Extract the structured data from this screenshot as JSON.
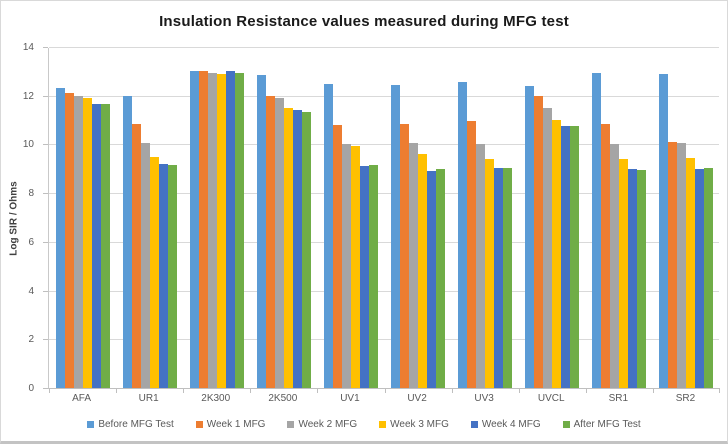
{
  "chart_data": {
    "type": "bar",
    "title": "Insulation Resistance values measured during MFG test",
    "xlabel": "",
    "ylabel": "Log SIR / Ohms",
    "ylim": [
      0,
      14
    ],
    "yticks": [
      0,
      2,
      4,
      6,
      8,
      10,
      12,
      14
    ],
    "grid": true,
    "legend_position": "bottom",
    "categories": [
      "AFA",
      "UR1",
      "2K300",
      "2K500",
      "UV1",
      "UV2",
      "UV3",
      "UVCL",
      "SR1",
      "SR2"
    ],
    "series": [
      {
        "name": "Before MFG Test",
        "color": "#5B9BD5",
        "values": [
          12.3,
          12.0,
          13.0,
          12.85,
          12.5,
          12.45,
          12.55,
          12.4,
          12.95,
          12.9
        ]
      },
      {
        "name": "Week 1 MFG",
        "color": "#ED7D31",
        "values": [
          12.1,
          10.85,
          13.0,
          12.0,
          10.8,
          10.85,
          10.95,
          12.0,
          10.85,
          10.1
        ]
      },
      {
        "name": "Week 2 MFG",
        "color": "#A5A5A5",
        "values": [
          12.0,
          10.05,
          12.95,
          11.9,
          10.0,
          10.05,
          10.0,
          11.5,
          10.0,
          10.05
        ]
      },
      {
        "name": "Week 3 MFG",
        "color": "#FFC000",
        "values": [
          11.9,
          9.5,
          12.9,
          11.5,
          9.95,
          9.6,
          9.4,
          11.0,
          9.4,
          9.45
        ]
      },
      {
        "name": "Week 4 MFG",
        "color": "#4472C4",
        "values": [
          11.65,
          9.2,
          13.0,
          11.4,
          9.1,
          8.9,
          9.05,
          10.75,
          9.0,
          9.0
        ]
      },
      {
        "name": "After MFG Test",
        "color": "#70AD47",
        "values": [
          11.65,
          9.15,
          12.95,
          11.35,
          9.15,
          9.0,
          9.05,
          10.75,
          8.95,
          9.05
        ]
      }
    ]
  }
}
